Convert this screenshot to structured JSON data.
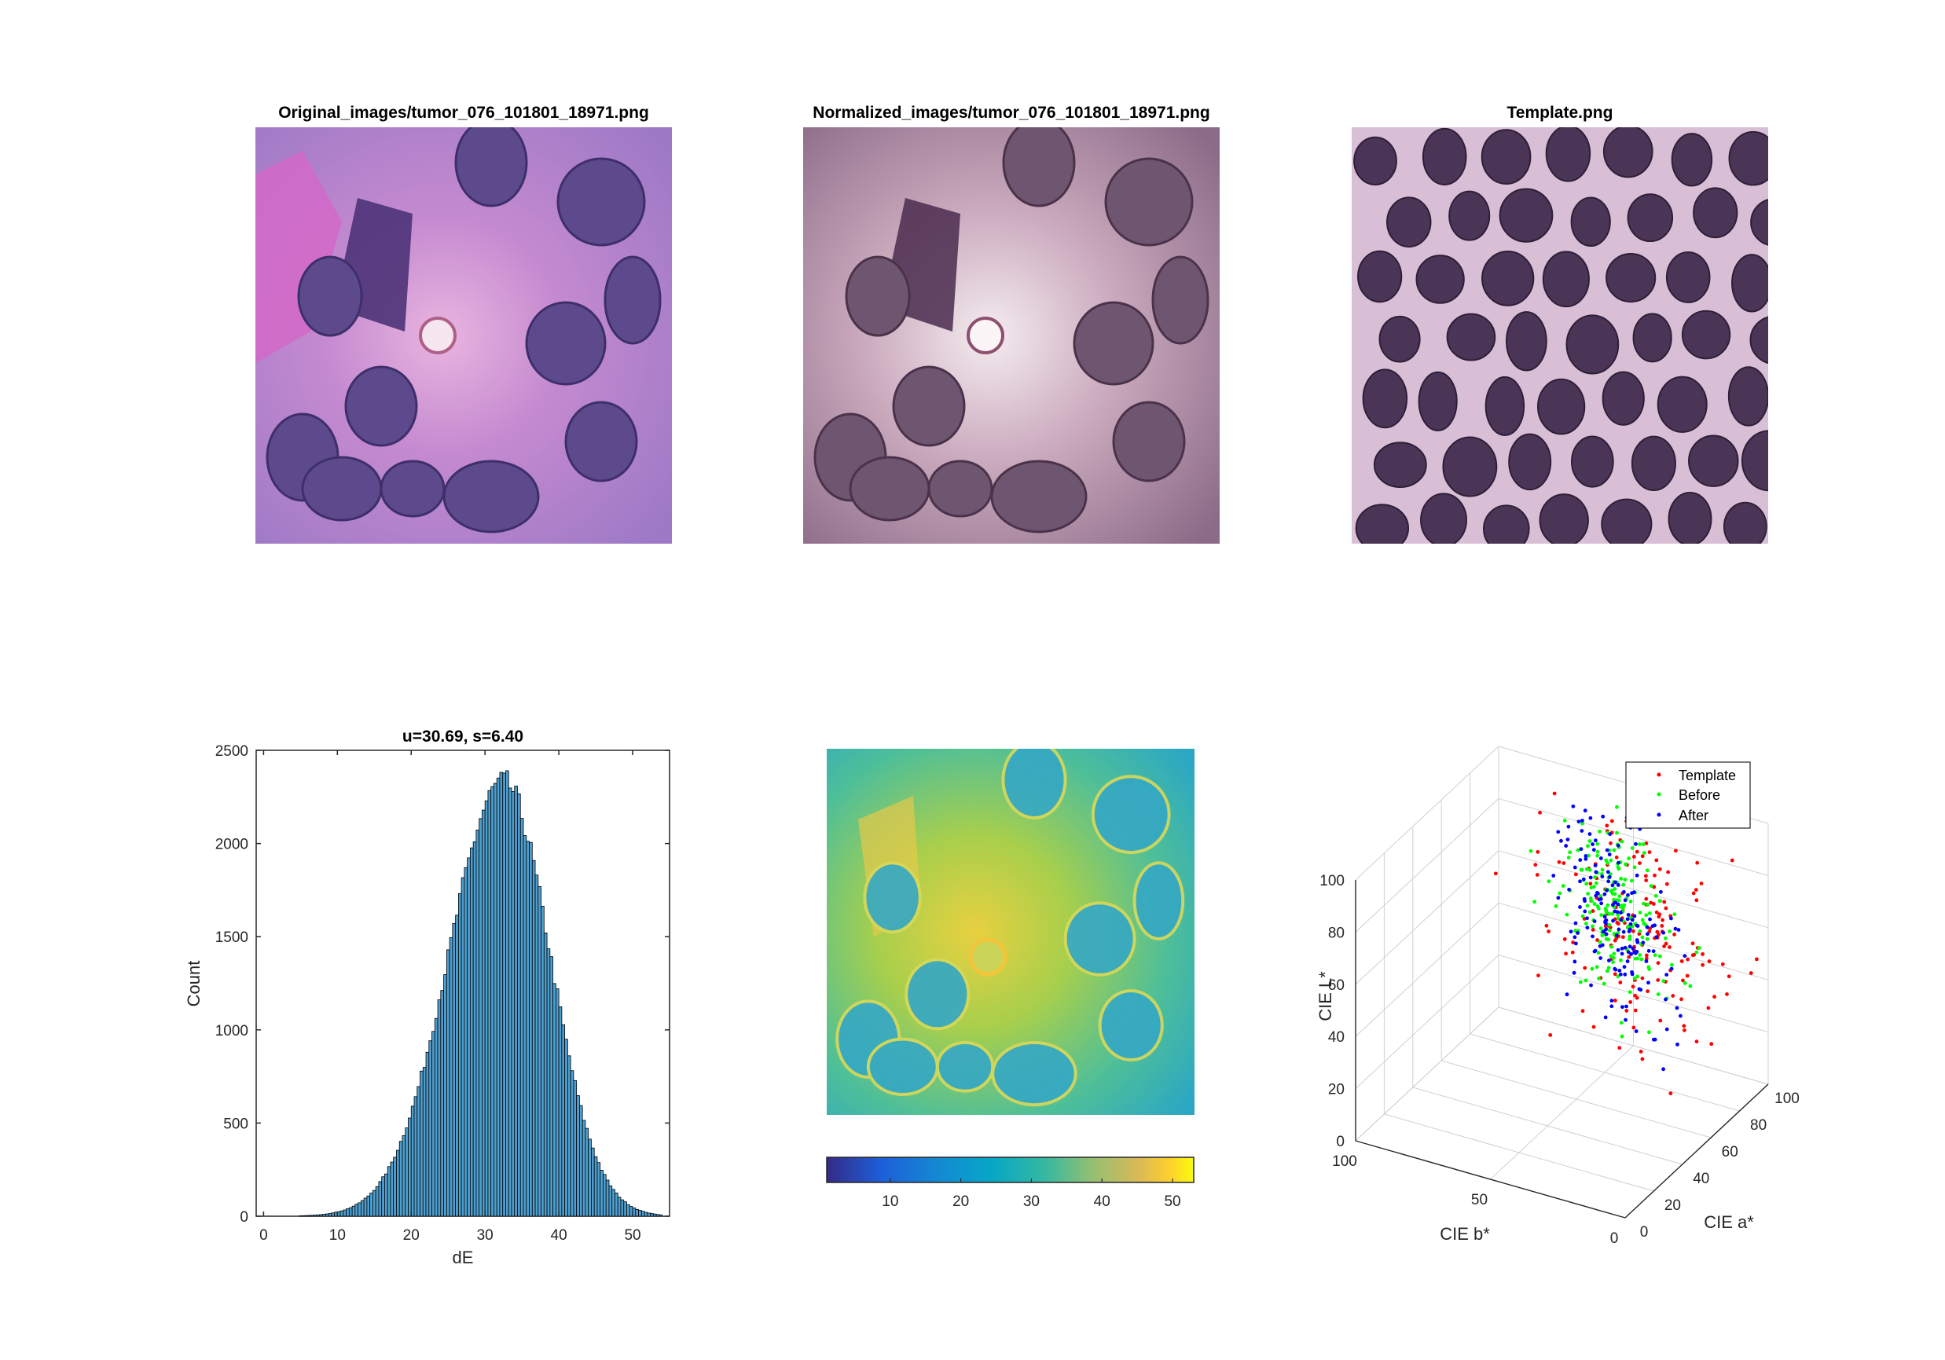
{
  "figure": {
    "panels": [
      {
        "title": "Original_images/tumor_076_101801_18971.png",
        "image": "original-tissue-image"
      },
      {
        "title": "Normalized_images/tumor_076_101801_18971.png",
        "image": "normalized-tissue-image"
      },
      {
        "title": "Template.png",
        "image": "template-tissue-image"
      }
    ]
  },
  "colors": {
    "bar_fill": "#4e9fcf",
    "bar_edge": "#000000",
    "template_series": "#ff0000",
    "before_series": "#00ff00",
    "after_series": "#0000ff"
  },
  "chart_data": [
    {
      "type": "bar",
      "title": "u=30.69, s=6.40",
      "xlabel": "dE",
      "ylabel": "Count",
      "xlim": [
        -1,
        55
      ],
      "ylim": [
        0,
        2500
      ],
      "xticks": [
        0,
        10,
        20,
        30,
        40,
        50
      ],
      "yticks": [
        0,
        500,
        1000,
        1500,
        2000,
        2500
      ],
      "mean": 30.69,
      "std": 6.4,
      "peak": 2330
    },
    {
      "type": "heatmap",
      "title": "",
      "colorbar": {
        "min": 1,
        "max": 53,
        "ticks": [
          10,
          20,
          30,
          40,
          50
        ],
        "colormap": "parula"
      }
    },
    {
      "type": "scatter",
      "title": "",
      "xlabel": "CIE b*",
      "ylabel": "CIE a*",
      "zlabel": "CIE L*",
      "xticks": [
        100,
        50,
        0
      ],
      "yticks": [
        0,
        20,
        40,
        60,
        80,
        100
      ],
      "zticks": [
        0,
        20,
        40,
        60,
        80,
        100
      ],
      "legend": {
        "position": "top-right",
        "entries": [
          "Template",
          "Before",
          "After"
        ]
      },
      "series": [
        {
          "name": "Template",
          "color": "#ff0000"
        },
        {
          "name": "Before",
          "color": "#00ff00"
        },
        {
          "name": "After",
          "color": "#0000ff"
        }
      ]
    }
  ]
}
